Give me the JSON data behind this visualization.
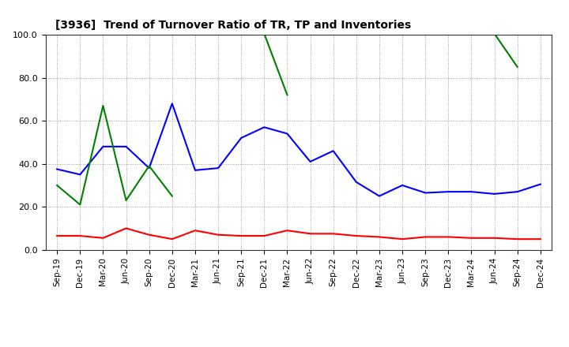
{
  "title": "[3936]  Trend of Turnover Ratio of TR, TP and Inventories",
  "x_labels": [
    "Sep-19",
    "Dec-19",
    "Mar-20",
    "Jun-20",
    "Sep-20",
    "Dec-20",
    "Mar-21",
    "Jun-21",
    "Sep-21",
    "Dec-21",
    "Mar-22",
    "Jun-22",
    "Sep-22",
    "Dec-22",
    "Mar-23",
    "Jun-23",
    "Sep-23",
    "Dec-23",
    "Mar-24",
    "Jun-24",
    "Sep-24",
    "Dec-24"
  ],
  "trade_receivables": [
    6.5,
    6.5,
    5.5,
    10.0,
    7.0,
    5.0,
    9.0,
    7.0,
    6.5,
    6.5,
    9.0,
    7.5,
    7.5,
    6.5,
    6.0,
    5.0,
    6.0,
    6.0,
    5.5,
    5.5,
    5.0,
    5.0
  ],
  "trade_payables": [
    37.5,
    35.0,
    48.0,
    48.0,
    38.0,
    68.0,
    37.0,
    38.0,
    52.0,
    57.0,
    54.0,
    41.0,
    46.0,
    31.5,
    25.0,
    30.0,
    26.5,
    27.0,
    27.0,
    26.0,
    27.0,
    30.5
  ],
  "inventories": [
    30.0,
    21.0,
    67.0,
    23.0,
    39.0,
    25.0,
    null,
    null,
    100.5,
    100.5,
    72.0,
    null,
    null,
    null,
    null,
    null,
    null,
    null,
    null,
    100.5,
    85.0,
    null
  ],
  "ylim": [
    0.0,
    100.0
  ],
  "yticks": [
    0.0,
    20.0,
    40.0,
    60.0,
    80.0,
    100.0
  ],
  "color_tr": "#ff0000",
  "color_tp": "#0000ff",
  "color_inv": "#008000",
  "background_color": "#ffffff",
  "grid_color": "#888888"
}
